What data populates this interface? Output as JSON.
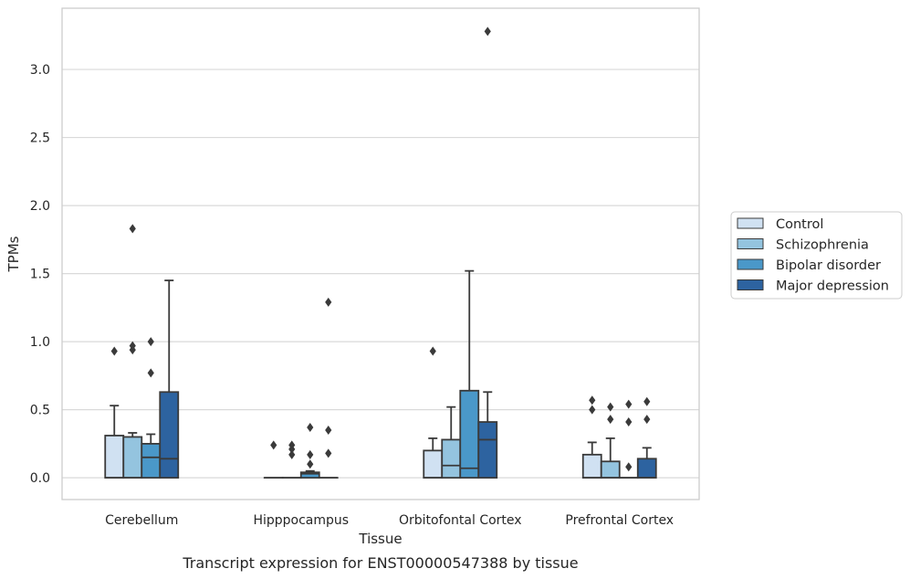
{
  "chart_data": {
    "type": "box",
    "caption": "Transcript expression for ENST00000547388 by tissue",
    "xlabel": "Tissue",
    "ylabel": "TPMs",
    "ylim": [
      -0.16,
      3.45
    ],
    "yticks": [
      "0.0",
      "0.5",
      "1.0",
      "1.5",
      "2.0",
      "2.5",
      "3.0"
    ],
    "grid": true,
    "legend_position": "right",
    "categories": [
      "Cerebellum",
      "Hipppocampus",
      "Orbitofontal Cortex",
      "Prefrontal Cortex"
    ],
    "series": [
      {
        "name": "Control",
        "color": "#d0e1f2",
        "boxes": [
          {
            "whisker_low": 0,
            "q1": 0,
            "median": 0,
            "q3": 0.31,
            "whisker_high": 0.53,
            "outliers": [
              0.93
            ]
          },
          {
            "whisker_low": 0,
            "q1": 0,
            "median": 0,
            "q3": 0,
            "whisker_high": 0,
            "outliers": [
              0.24
            ]
          },
          {
            "whisker_low": 0,
            "q1": 0,
            "median": 0,
            "q3": 0.2,
            "whisker_high": 0.29,
            "outliers": [
              0.93
            ]
          },
          {
            "whisker_low": 0,
            "q1": 0,
            "median": 0,
            "q3": 0.17,
            "whisker_high": 0.26,
            "outliers": [
              0.5,
              0.57
            ]
          }
        ]
      },
      {
        "name": "Schizophrenia",
        "color": "#94c4df",
        "boxes": [
          {
            "whisker_low": 0,
            "q1": 0,
            "median": 0,
            "q3": 0.3,
            "whisker_high": 0.33,
            "outliers": [
              0.94,
              0.97,
              1.83
            ]
          },
          {
            "whisker_low": 0,
            "q1": 0,
            "median": 0,
            "q3": 0,
            "whisker_high": 0,
            "outliers": [
              0.17,
              0.21,
              0.24
            ]
          },
          {
            "whisker_low": 0,
            "q1": 0,
            "median": 0.09,
            "q3": 0.28,
            "whisker_high": 0.52,
            "outliers": []
          },
          {
            "whisker_low": 0,
            "q1": 0,
            "median": 0,
            "q3": 0.12,
            "whisker_high": 0.29,
            "outliers": [
              0.43,
              0.52
            ]
          }
        ]
      },
      {
        "name": "Bipolar disorder",
        "color": "#4a98c9",
        "boxes": [
          {
            "whisker_low": 0,
            "q1": 0,
            "median": 0.15,
            "q3": 0.25,
            "whisker_high": 0.32,
            "outliers": [
              0.77,
              1.0
            ]
          },
          {
            "whisker_low": 0,
            "q1": 0,
            "median": 0.03,
            "q3": 0.04,
            "whisker_high": 0.05,
            "outliers": [
              0.1,
              0.17,
              0.37
            ]
          },
          {
            "whisker_low": 0,
            "q1": 0,
            "median": 0.07,
            "q3": 0.64,
            "whisker_high": 1.52,
            "outliers": []
          },
          {
            "whisker_low": 0,
            "q1": 0,
            "median": 0,
            "q3": 0,
            "whisker_high": 0,
            "outliers": [
              0.08,
              0.41,
              0.54
            ]
          }
        ]
      },
      {
        "name": "Major depression",
        "color": "#2d63a0",
        "boxes": [
          {
            "whisker_low": 0,
            "q1": 0,
            "median": 0.14,
            "q3": 0.63,
            "whisker_high": 1.45,
            "outliers": []
          },
          {
            "whisker_low": 0,
            "q1": 0,
            "median": 0,
            "q3": 0,
            "whisker_high": 0,
            "outliers": [
              0.18,
              0.35,
              1.29
            ]
          },
          {
            "whisker_low": 0,
            "q1": 0,
            "median": 0.28,
            "q3": 0.41,
            "whisker_high": 0.63,
            "outliers": [
              3.28
            ]
          },
          {
            "whisker_low": 0,
            "q1": 0,
            "median": 0,
            "q3": 0.14,
            "whisker_high": 0.22,
            "outliers": [
              0.43,
              0.56
            ]
          }
        ]
      }
    ]
  }
}
